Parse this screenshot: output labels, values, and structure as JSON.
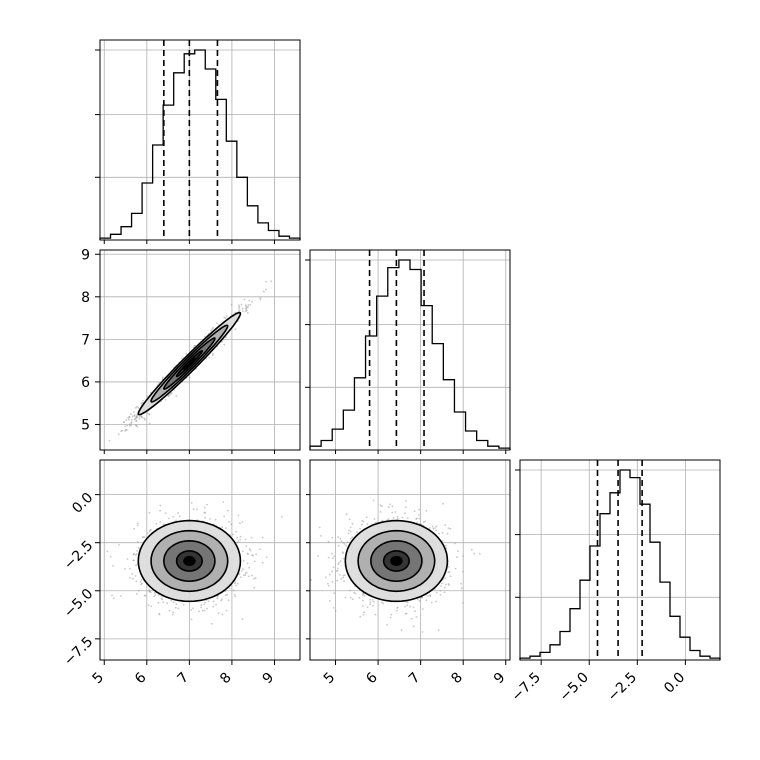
{
  "colors": {
    "line": "#000000",
    "grid": "#b0b0b0",
    "points": "#9a9a9a"
  },
  "chart_data": {
    "type": "corner",
    "title": "",
    "params": [
      {
        "range": [
          4.9,
          9.6
        ],
        "ticks": [
          5,
          6,
          7,
          8,
          9
        ],
        "tick_labels": [
          "5",
          "6",
          "7",
          "8",
          "9"
        ]
      },
      {
        "range": [
          4.4,
          9.1
        ],
        "ticks": [
          5,
          6,
          7,
          8,
          9
        ],
        "tick_labels": [
          "5",
          "6",
          "7",
          "8",
          "9"
        ]
      },
      {
        "range": [
          -8.6,
          1.8
        ],
        "ticks": [
          -7.5,
          -5.0,
          -2.5,
          0.0
        ],
        "tick_labels": [
          "−7.5",
          "−5.0",
          "−2.5",
          "0.0"
        ]
      }
    ],
    "quantiles": [
      [
        6.4,
        7.0,
        7.66
      ],
      [
        5.8,
        6.43,
        7.08
      ],
      [
        -4.57,
        -3.5,
        -2.25
      ]
    ],
    "hist_counts": [
      [
        1,
        3,
        7,
        14,
        30,
        50,
        71,
        88,
        98,
        100,
        90,
        74,
        52,
        33,
        18,
        9,
        5,
        2,
        1
      ],
      [
        2,
        5,
        11,
        21,
        38,
        60,
        81,
        96,
        100,
        95,
        76,
        56,
        37,
        20,
        10,
        5,
        2,
        1
      ],
      [
        1,
        2,
        4,
        8,
        15,
        27,
        42,
        60,
        77,
        88,
        100,
        96,
        82,
        62,
        41,
        23,
        12,
        5,
        2,
        1
      ]
    ],
    "scatter_panels": [
      {
        "row": 1,
        "col": 0,
        "mean": [
          7.0,
          6.43
        ],
        "sigma": [
          0.6,
          0.6
        ],
        "rho": 0.98,
        "contour_levels_sigma": [
          0.5,
          1.0,
          1.5,
          2.0
        ]
      },
      {
        "row": 2,
        "col": 0,
        "mean": [
          7.0,
          -3.45
        ],
        "sigma": [
          0.6,
          1.05
        ],
        "rho": 0.0,
        "contour_levels_sigma": [
          0.5,
          1.0,
          1.5,
          2.0
        ]
      },
      {
        "row": 2,
        "col": 1,
        "mean": [
          6.43,
          -3.45
        ],
        "sigma": [
          0.6,
          1.05
        ],
        "rho": 0.0,
        "contour_levels_sigma": [
          0.5,
          1.0,
          1.5,
          2.0
        ]
      }
    ]
  }
}
